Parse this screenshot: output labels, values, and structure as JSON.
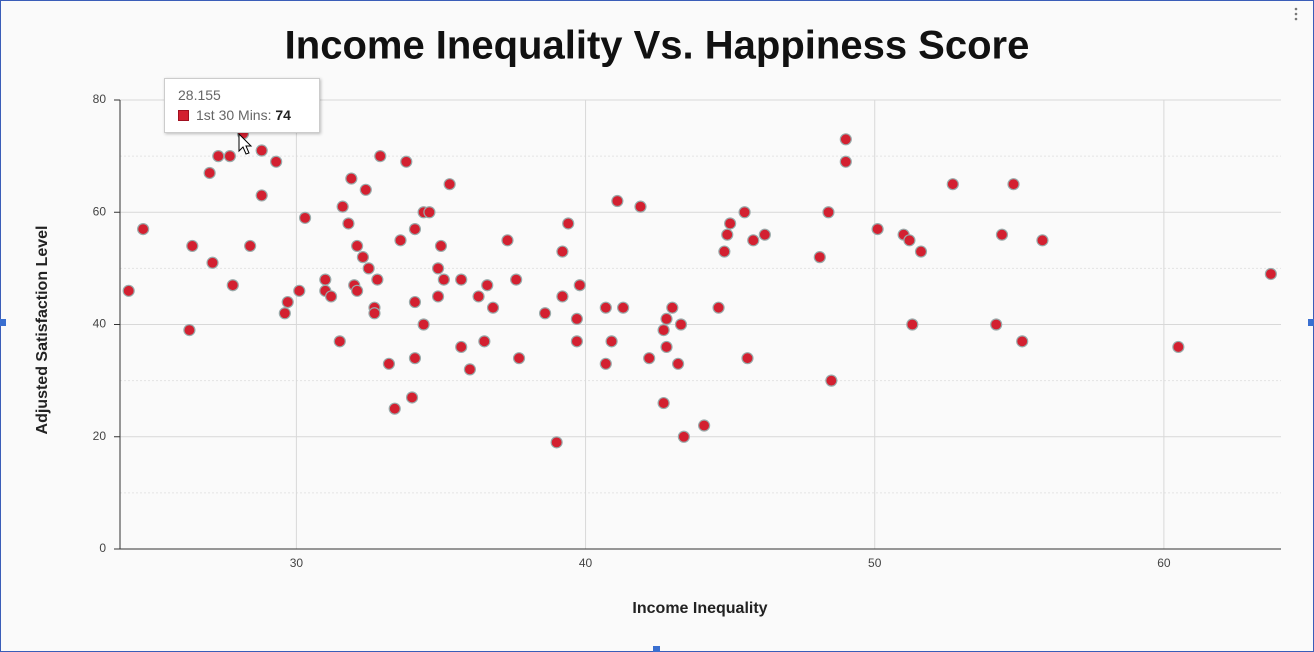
{
  "chart_data": {
    "type": "scatter",
    "title": "Income Inequality Vs. Happiness Score",
    "x_label": "Income Inequality",
    "y_label": "Adjusted Satisfaction Level",
    "xlim": [
      23.9,
      64.05
    ],
    "ylim": [
      0,
      80
    ],
    "xticks": [
      30,
      40,
      50,
      60
    ],
    "yticks": [
      0,
      20,
      40,
      60,
      80
    ],
    "yminorticks": [
      10,
      30,
      50,
      70
    ],
    "grid": true,
    "series": [
      {
        "name": "1st 30 Mins",
        "color": "#d32030",
        "x": [
          24.2,
          24.7,
          26.3,
          26.4,
          27.0,
          27.1,
          27.3,
          27.7,
          27.8,
          28.155,
          28.4,
          28.8,
          28.8,
          29.3,
          29.6,
          29.7,
          30.1,
          30.3,
          31.0,
          31.0,
          31.2,
          31.5,
          31.6,
          31.8,
          31.9,
          32.0,
          32.1,
          32.1,
          32.3,
          32.4,
          32.5,
          32.7,
          32.7,
          32.8,
          32.9,
          33.2,
          33.4,
          33.6,
          33.8,
          34.0,
          34.1,
          34.1,
          34.1,
          34.4,
          34.4,
          34.6,
          34.9,
          34.9,
          35.0,
          35.1,
          35.3,
          35.7,
          35.7,
          36.0,
          36.3,
          36.5,
          36.6,
          36.8,
          37.3,
          37.6,
          37.7,
          38.6,
          39.0,
          39.2,
          39.2,
          39.4,
          39.7,
          39.7,
          39.8,
          40.7,
          40.7,
          40.9,
          41.1,
          41.3,
          41.9,
          42.2,
          42.7,
          42.7,
          42.8,
          42.8,
          43.0,
          43.2,
          43.3,
          43.4,
          44.1,
          44.6,
          44.8,
          44.9,
          45.0,
          45.5,
          45.6,
          45.8,
          46.2,
          48.1,
          48.4,
          48.5,
          49.0,
          49.0,
          50.1,
          51.0,
          51.2,
          51.3,
          51.6,
          52.7,
          54.2,
          54.4,
          54.8,
          55.1,
          55.8,
          60.5,
          63.7
        ],
        "values": [
          46,
          57,
          39,
          54,
          67,
          51,
          70,
          70,
          47,
          74,
          54,
          63,
          71,
          69,
          42,
          44,
          46,
          59,
          46,
          48,
          45,
          37,
          61,
          58,
          66,
          47,
          46,
          54,
          52,
          64,
          50,
          43,
          42,
          48,
          70,
          33,
          25,
          55,
          69,
          27,
          57,
          44,
          34,
          60,
          40,
          60,
          45,
          50,
          54,
          48,
          65,
          36,
          48,
          32,
          45,
          37,
          47,
          43,
          55,
          48,
          34,
          42,
          19,
          45,
          53,
          58,
          37,
          41,
          47,
          33,
          43,
          37,
          62,
          43,
          61,
          34,
          26,
          39,
          41,
          36,
          43,
          33,
          40,
          20,
          22,
          43,
          53,
          56,
          58,
          60,
          34,
          55,
          56,
          52,
          60,
          30,
          69,
          73,
          57,
          56,
          55,
          40,
          53,
          65,
          40,
          56,
          65,
          37,
          55,
          36,
          49
        ]
      }
    ]
  }
}
